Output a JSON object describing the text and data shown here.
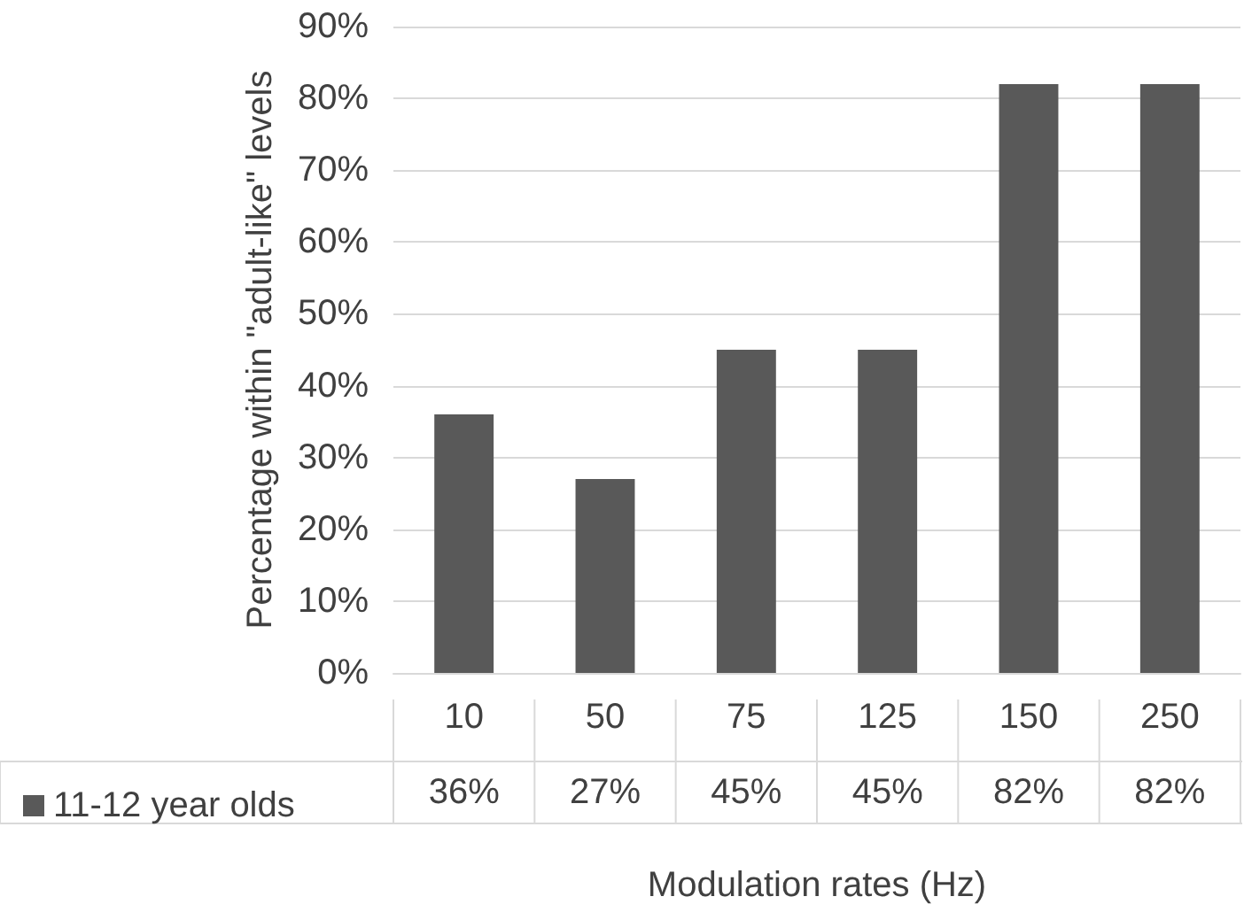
{
  "chart_data": {
    "type": "bar",
    "xlabel": "Modulation rates (Hz)",
    "ylabel": "Percentage within \"adult-like\" levels",
    "categories": [
      "10",
      "50",
      "75",
      "125",
      "150",
      "250"
    ],
    "series": [
      {
        "name": "11-12 year olds",
        "color": "#595959",
        "values": [
          36,
          27,
          45,
          45,
          82,
          82
        ],
        "value_labels": [
          "36%",
          "27%",
          "45%",
          "45%",
          "82%",
          "82%"
        ]
      }
    ],
    "ylim": [
      0,
      90
    ],
    "yticks": [
      {
        "value": 0,
        "label": "0%"
      },
      {
        "value": 10,
        "label": "10%"
      },
      {
        "value": 20,
        "label": "20%"
      },
      {
        "value": 30,
        "label": "30%"
      },
      {
        "value": 40,
        "label": "40%"
      },
      {
        "value": 50,
        "label": "50%"
      },
      {
        "value": 60,
        "label": "60%"
      },
      {
        "value": 70,
        "label": "70%"
      },
      {
        "value": 80,
        "label": "80%"
      },
      {
        "value": 90,
        "label": "90%"
      }
    ],
    "grid": "y",
    "legend": "bottom"
  }
}
